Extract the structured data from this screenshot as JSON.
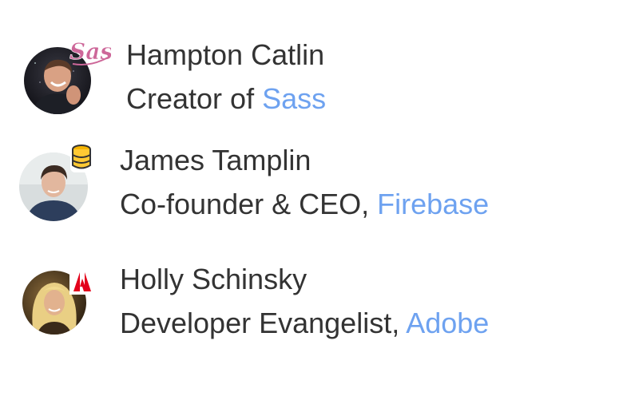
{
  "speakers": [
    {
      "name": "Hampton Catlin",
      "role_prefix": "Creator of ",
      "company": "Sass",
      "badge_icon": "sass-logo-icon",
      "company_color": "#6ea2f0"
    },
    {
      "name": "James Tamplin",
      "role_prefix": "Co-founder & CEO, ",
      "company": "Firebase",
      "badge_icon": "firebase-database-icon",
      "company_color": "#6ea2f0"
    },
    {
      "name": "Holly Schinsky",
      "role_prefix": "Developer Evangelist, ",
      "company": "Adobe",
      "badge_icon": "adobe-logo-icon",
      "company_color": "#6ea2f0"
    }
  ]
}
